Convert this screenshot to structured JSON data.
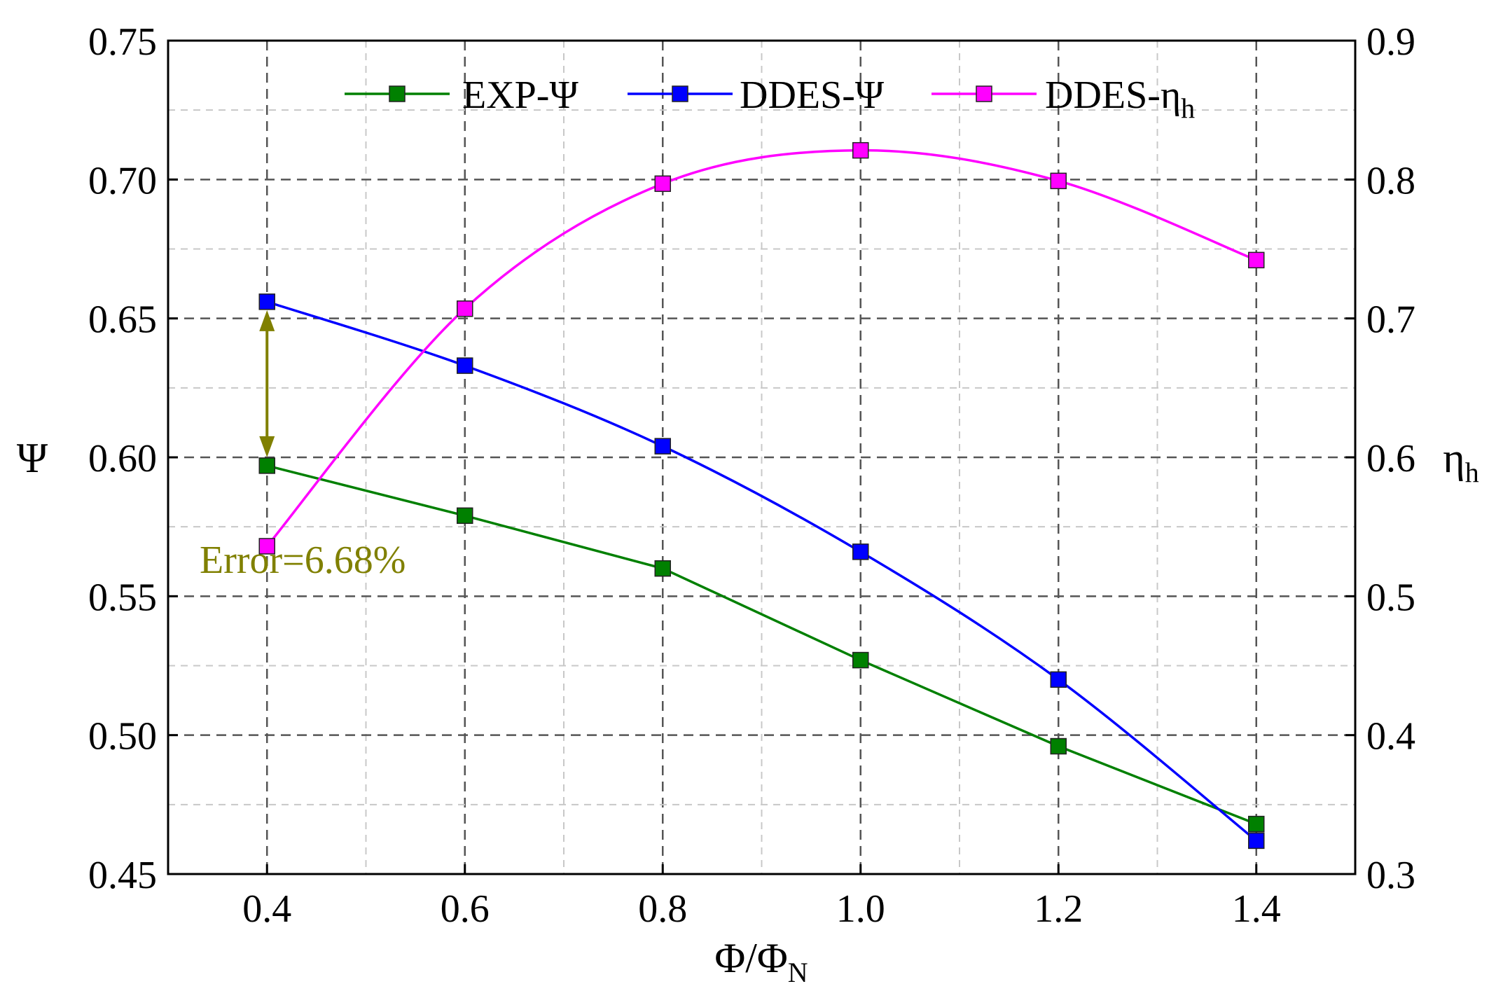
{
  "chart_data": {
    "type": "line",
    "xlabel": {
      "main": "Φ/Φ",
      "sub": "N"
    },
    "ylabel": "Ψ",
    "y2label": {
      "main": "η",
      "sub": "h"
    },
    "xlim": [
      0.3,
      1.5
    ],
    "ylim": [
      0.45,
      0.75
    ],
    "y2lim": [
      0.3,
      0.9
    ],
    "xticks": [
      "0.4",
      "0.6",
      "0.8",
      "1.0",
      "1.2",
      "1.4"
    ],
    "yticks": [
      "0.45",
      "0.50",
      "0.55",
      "0.60",
      "0.65",
      "0.70",
      "0.75"
    ],
    "y2ticks": [
      "0.3",
      "0.4",
      "0.5",
      "0.6",
      "0.7",
      "0.8",
      "0.9"
    ],
    "grid": true,
    "legend_position": "top",
    "x": [
      0.4,
      0.6,
      0.8,
      1.0,
      1.2,
      1.4
    ],
    "series": [
      {
        "name": "EXP-Ψ",
        "axis": "left",
        "color": "#008000",
        "smooth": false,
        "values": [
          0.597,
          0.579,
          0.56,
          0.527,
          0.496,
          0.468
        ]
      },
      {
        "name": "DDES-Ψ",
        "axis": "left",
        "color": "#0000ff",
        "smooth": true,
        "values": [
          0.656,
          0.633,
          0.604,
          0.566,
          0.52,
          0.462
        ]
      },
      {
        "name": "DDES-η",
        "name_sub": "h",
        "axis": "right",
        "color": "#ff00ff",
        "smooth": true,
        "values": [
          0.536,
          0.707,
          0.797,
          0.821,
          0.799,
          0.742
        ]
      }
    ],
    "annotation": {
      "text": "Error=6.68%",
      "color": "#808000",
      "x": 0.4,
      "y_from": 0.597,
      "y_to": 0.656
    }
  }
}
